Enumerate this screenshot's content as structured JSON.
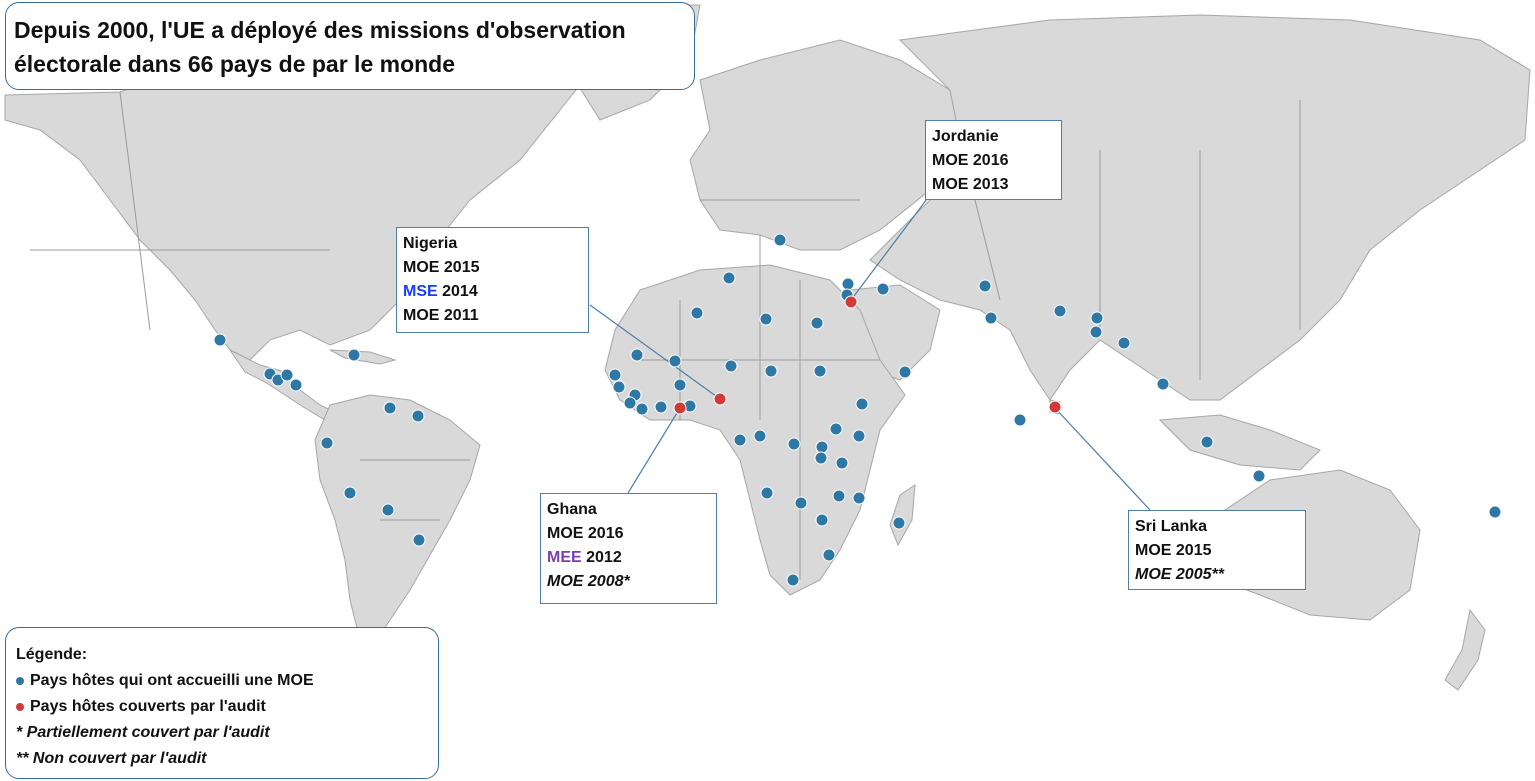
{
  "title": {
    "line1": "Depuis 2000, l'UE a déployé des missions d'observation",
    "line2": "électorale dans 66 pays de par le monde"
  },
  "callouts": {
    "nigeria": {
      "country": "Nigeria",
      "l1": "MOE 2015",
      "l2_type": "MSE",
      "l2_year": " 2014",
      "l3": "MOE 2011"
    },
    "jordanie": {
      "country": "Jordanie",
      "l1": "MOE 2016",
      "l2": "MOE 2013"
    },
    "ghana": {
      "country": "Ghana",
      "l1": "MOE 2016",
      "l2_type": "MEE",
      "l2_year": " 2012",
      "l3": "MOE 2008*"
    },
    "srilanka": {
      "country": "Sri Lanka",
      "l1": "MOE 2015",
      "l2": "MOE 2005**"
    }
  },
  "legend": {
    "title": "Légende:",
    "blue_label": "Pays hôtes qui ont accueilli une MOE",
    "red_label": "Pays hôtes couverts par l'audit",
    "note1": "* Partiellement couvert par l'audit",
    "note2": "** Non couvert par l'audit"
  },
  "colors": {
    "blue_dot": "#2e78a6",
    "red_dot": "#d23a3a",
    "mse_text": "#1a3cff",
    "mee_text": "#7d3fb0"
  }
}
